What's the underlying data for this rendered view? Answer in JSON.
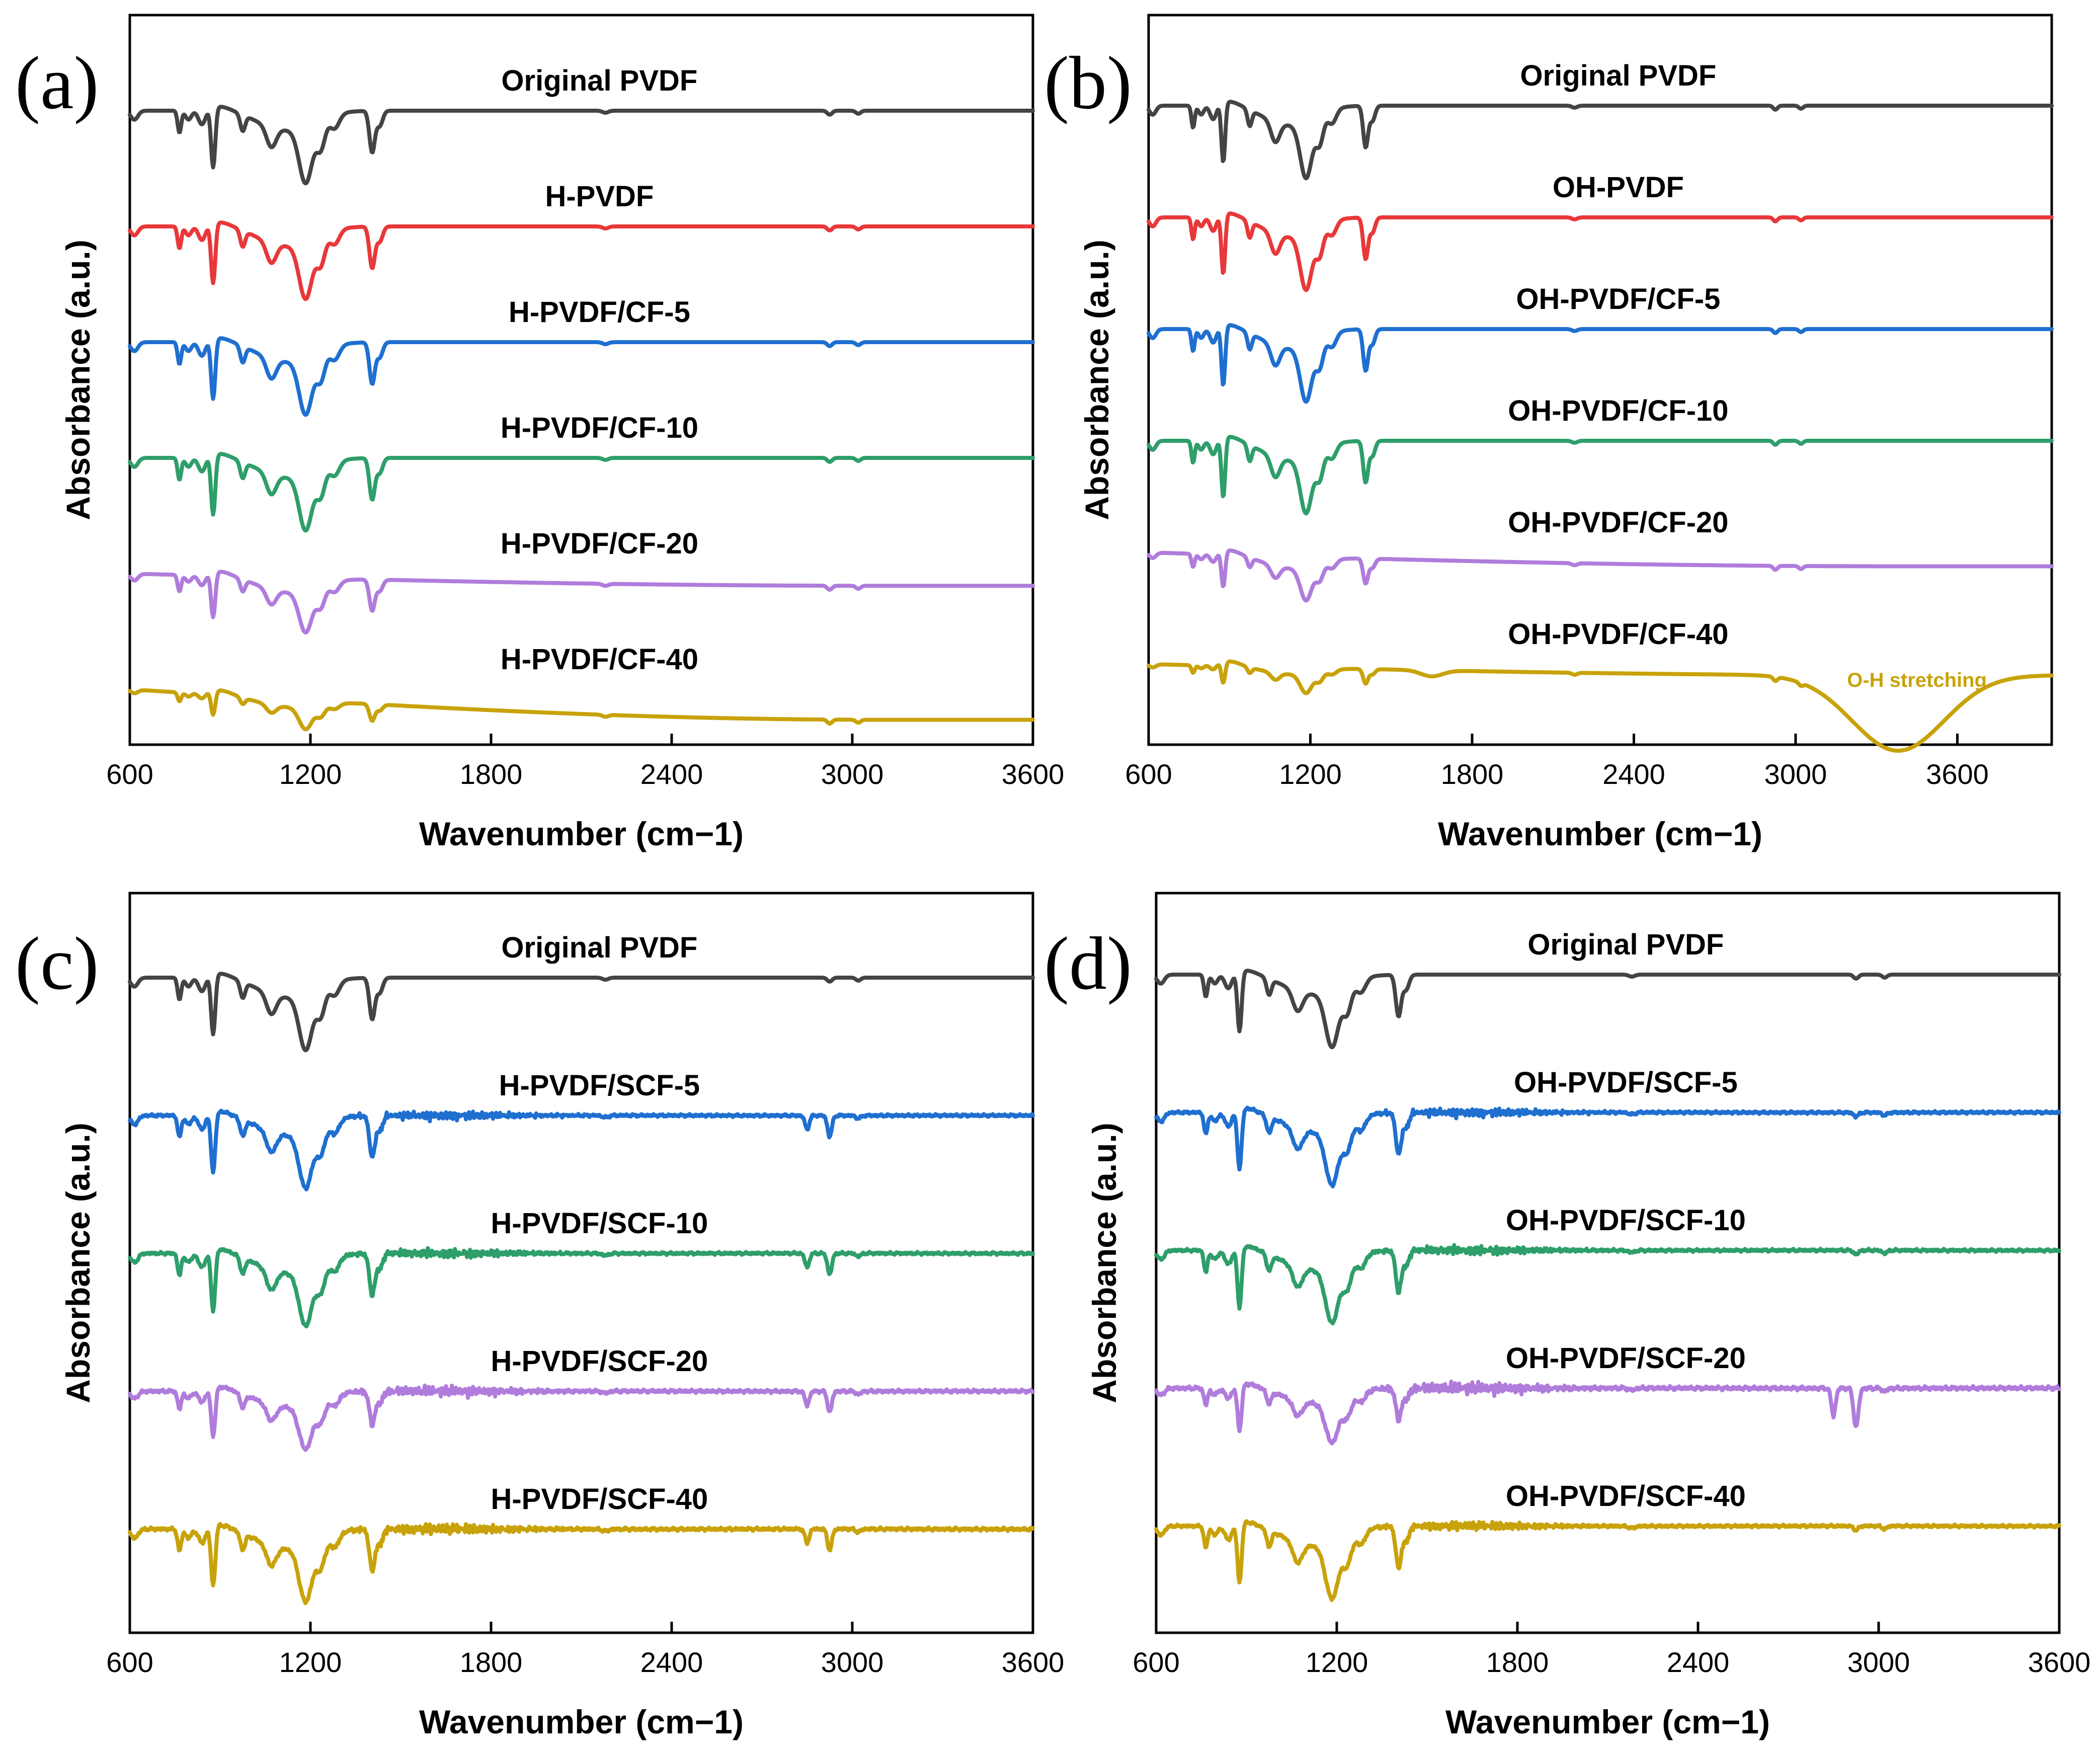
{
  "colors": {
    "gray": "#444444",
    "red": "#e8383a",
    "blue": "#1f6fd0",
    "green": "#2e9e6a",
    "purple": "#b07cdc",
    "gold": "#c8a20a"
  },
  "chart_data": [
    {
      "panel": "(a)",
      "type": "line",
      "xlabel": "Wavenumber (cm−1)",
      "ylabel": "Absorbance (a.u.)",
      "xlim": [
        600,
        3600
      ],
      "xticks": [
        "600",
        "1200",
        "1800",
        "2400",
        "3000",
        "3600"
      ],
      "series": [
        {
          "name": "Original PVDF",
          "color": "gray",
          "offset": 0,
          "scale": 1.0,
          "noise": 0,
          "drift": 0,
          "features": []
        },
        {
          "name": "H-PVDF",
          "color": "red",
          "offset": 1,
          "scale": 1.0,
          "noise": 0,
          "drift": 0,
          "features": []
        },
        {
          "name": "H-PVDF/CF-5",
          "color": "blue",
          "offset": 2,
          "scale": 1.0,
          "noise": 0,
          "drift": 0,
          "features": []
        },
        {
          "name": "H-PVDF/CF-10",
          "color": "green",
          "offset": 3,
          "scale": 1.0,
          "noise": 0,
          "drift": 0,
          "features": []
        },
        {
          "name": "H-PVDF/CF-20",
          "color": "purple",
          "offset": 4,
          "scale": 0.75,
          "noise": 0,
          "drift": 0.22,
          "features": []
        },
        {
          "name": "H-PVDF/CF-40",
          "color": "gold",
          "offset": 5,
          "scale": 0.4,
          "noise": 0,
          "drift": 0.55,
          "features": []
        }
      ]
    },
    {
      "panel": "(b)",
      "type": "line",
      "xlabel": "Wavenumber (cm−1)",
      "ylabel": "Absorbance (a.u.)",
      "xlim": [
        600,
        3950
      ],
      "xticks": [
        "600",
        "1200",
        "1800",
        "2400",
        "3000",
        "3600"
      ],
      "annotation": {
        "text": "O-H stretching",
        "x": 3450,
        "series": 5
      },
      "series": [
        {
          "name": "Original PVDF",
          "color": "gray",
          "offset": 0,
          "scale": 1.0,
          "noise": 0,
          "drift": 0,
          "features": []
        },
        {
          "name": "OH-PVDF",
          "color": "red",
          "offset": 1,
          "scale": 1.0,
          "noise": 0,
          "drift": 0,
          "features": []
        },
        {
          "name": "OH-PVDF/CF-5",
          "color": "blue",
          "offset": 2,
          "scale": 1.0,
          "noise": 0,
          "drift": 0,
          "features": []
        },
        {
          "name": "OH-PVDF/CF-10",
          "color": "green",
          "offset": 3,
          "scale": 1.0,
          "noise": 0,
          "drift": 0,
          "features": []
        },
        {
          "name": "OH-PVDF/CF-20",
          "color": "purple",
          "offset": 4,
          "scale": 0.6,
          "noise": 0,
          "drift": 0.25,
          "features": []
        },
        {
          "name": "OH-PVDF/CF-40",
          "color": "gold",
          "offset": 5,
          "scale": 0.35,
          "noise": 0,
          "drift": 0.2,
          "features": [
            "oh"
          ]
        }
      ]
    },
    {
      "panel": "(c)",
      "type": "line",
      "xlabel": "Wavenumber (cm−1)",
      "ylabel": "Absorbance (a.u.)",
      "xlim": [
        600,
        3600
      ],
      "xticks": [
        "600",
        "1200",
        "1800",
        "2400",
        "3000",
        "3600"
      ],
      "series": [
        {
          "name": "Original PVDF",
          "color": "gray",
          "offset": 0,
          "scale": 1.0,
          "noise": 0,
          "drift": 0,
          "features": []
        },
        {
          "name": "H-PVDF/SCF-5",
          "color": "blue",
          "offset": 1,
          "scale": 1.0,
          "noise": 1,
          "drift": 0,
          "features": [
            "ch"
          ]
        },
        {
          "name": "H-PVDF/SCF-10",
          "color": "green",
          "offset": 2,
          "scale": 1.0,
          "noise": 1,
          "drift": 0,
          "features": [
            "ch"
          ]
        },
        {
          "name": "H-PVDF/SCF-20",
          "color": "purple",
          "offset": 3,
          "scale": 0.8,
          "noise": 1.2,
          "drift": 0,
          "features": [
            "ch"
          ]
        },
        {
          "name": "H-PVDF/SCF-40",
          "color": "gold",
          "offset": 4,
          "scale": 1.0,
          "noise": 1.2,
          "drift": 0,
          "features": [
            "ch"
          ]
        }
      ]
    },
    {
      "panel": "(d)",
      "type": "line",
      "xlabel": "Wavenumber (cm−1)",
      "ylabel": "Absorbance (a.u.)",
      "xlim": [
        600,
        3600
      ],
      "xticks": [
        "600",
        "1200",
        "1800",
        "2400",
        "3000",
        "3600"
      ],
      "series": [
        {
          "name": "Original PVDF",
          "color": "gray",
          "offset": 0,
          "scale": 1.0,
          "noise": 0,
          "drift": 0,
          "features": []
        },
        {
          "name": "OH-PVDF/SCF-5",
          "color": "blue",
          "offset": 1,
          "scale": 1.0,
          "noise": 1,
          "drift": 0,
          "features": []
        },
        {
          "name": "OH-PVDF/SCF-10",
          "color": "green",
          "offset": 2,
          "scale": 1.0,
          "noise": 1,
          "drift": 0,
          "features": []
        },
        {
          "name": "OH-PVDF/SCF-20",
          "color": "purple",
          "offset": 3,
          "scale": 0.75,
          "noise": 1.4,
          "drift": 0,
          "features": [
            "ch-strong"
          ]
        },
        {
          "name": "OH-PVDF/SCF-40",
          "color": "gold",
          "offset": 4,
          "scale": 1.0,
          "noise": 1,
          "drift": 0,
          "features": []
        }
      ]
    }
  ]
}
